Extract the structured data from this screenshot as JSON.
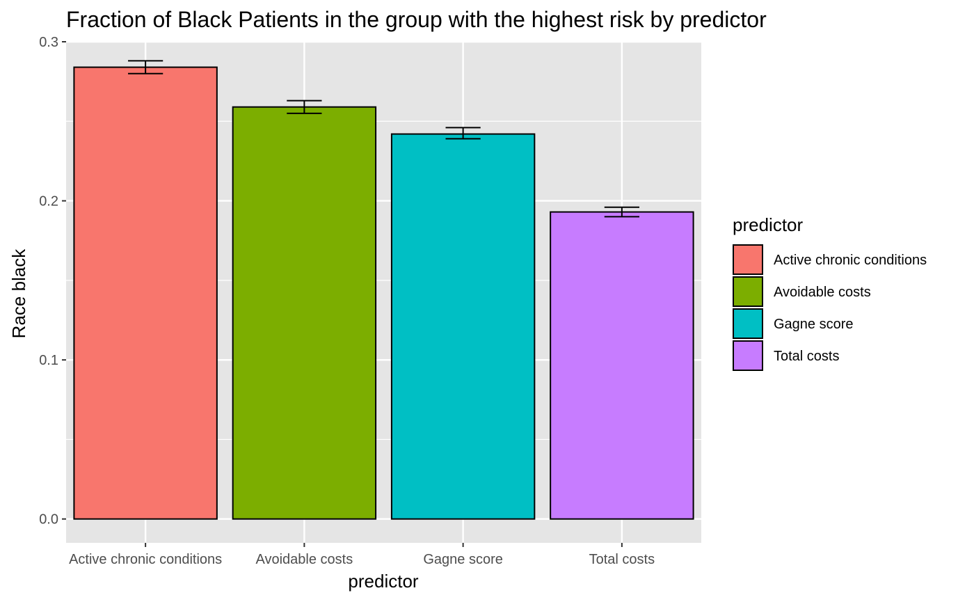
{
  "chart_data": {
    "type": "bar",
    "title": "Fraction of Black Patients in the group with the highest risk by predictor",
    "xlabel": "predictor",
    "ylabel": "Race black",
    "categories": [
      "Active chronic conditions",
      "Avoidable costs",
      "Gagne score",
      "Total costs"
    ],
    "values": [
      0.284,
      0.259,
      0.242,
      0.193
    ],
    "error_low": [
      0.28,
      0.255,
      0.239,
      0.19
    ],
    "error_high": [
      0.288,
      0.263,
      0.246,
      0.196
    ],
    "colors": [
      "#F8766D",
      "#7CAE00",
      "#00BFC4",
      "#C77CFF"
    ],
    "ylim": [
      -0.015,
      0.3
    ],
    "yticks": [
      0.0,
      0.1,
      0.2,
      0.3
    ],
    "ytick_labels": [
      "0.0",
      "0.1",
      "0.2",
      "0.3"
    ],
    "grid": true,
    "panel_background": "#E5E5E5",
    "legend": {
      "title": "predictor",
      "placement": "right",
      "entries": [
        "Active chronic conditions",
        "Avoidable costs",
        "Gagne score",
        "Total costs"
      ]
    }
  }
}
